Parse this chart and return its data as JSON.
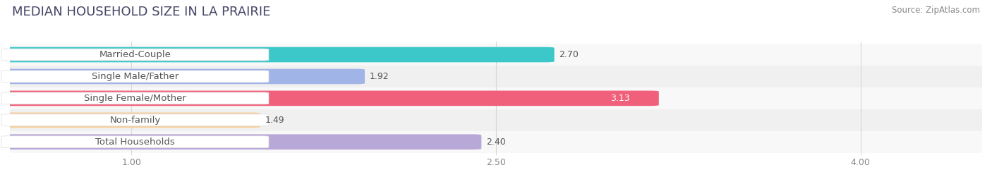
{
  "title": "MEDIAN HOUSEHOLD SIZE IN LA PRAIRIE",
  "source": "Source: ZipAtlas.com",
  "categories": [
    "Married-Couple",
    "Single Male/Father",
    "Single Female/Mother",
    "Non-family",
    "Total Households"
  ],
  "values": [
    2.7,
    1.92,
    3.13,
    1.49,
    2.4
  ],
  "bar_colors": [
    "#3cc8c8",
    "#a0b4e8",
    "#f0607a",
    "#f5cfa0",
    "#b8a8d8"
  ],
  "row_bg_colors": [
    "#f8f8f8",
    "#f0f0f0"
  ],
  "xlim": [
    0.5,
    4.5
  ],
  "xmin": 0.5,
  "xticks": [
    1.0,
    2.5,
    4.0
  ],
  "xtick_labels": [
    "1.00",
    "2.50",
    "4.00"
  ],
  "bar_height": 0.62,
  "background_color": "#ffffff",
  "title_fontsize": 13,
  "source_fontsize": 8.5,
  "label_fontsize": 9.5,
  "value_fontsize": 9.0,
  "value_color_dark": "#555555",
  "value_color_light": "#ffffff",
  "label_text_color": "#555555"
}
